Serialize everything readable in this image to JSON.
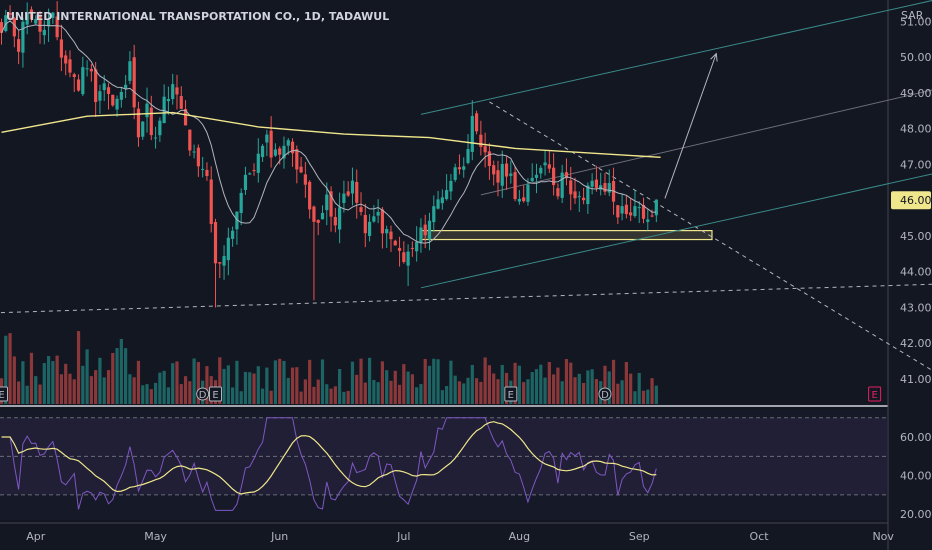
{
  "header": {
    "title": "UNITED INTERNATIONAL TRANSPORTATION CO., 1D, TADAWUL",
    "currency": "SAR"
  },
  "chart_data": {
    "type": "candlestick",
    "price_axis": {
      "ticks": [
        "51.00",
        "50.00",
        "49.00",
        "48.00",
        "47.00",
        "45.00",
        "44.00",
        "43.00",
        "42.00",
        "41.00"
      ],
      "tick_values": [
        51,
        50,
        49,
        48,
        47,
        45,
        44,
        43,
        42,
        41
      ],
      "last_price_label": "46.00",
      "last_price": 46.0,
      "range": [
        40.3,
        51.6
      ]
    },
    "rsi_axis": {
      "ticks": [
        "60.00",
        "40.00",
        "20.00"
      ],
      "tick_values": [
        60,
        40,
        20
      ],
      "upper_band": 70,
      "middle": 50,
      "lower_band": 30,
      "range": [
        17,
        74
      ]
    },
    "time_axis": {
      "labels": [
        "Apr",
        "May",
        "Jun",
        "Jul",
        "Aug",
        "Sep",
        "Oct",
        "Nov"
      ],
      "label_day_index": [
        8,
        36,
        65,
        94,
        121,
        149,
        177,
        206
      ]
    },
    "earnings_markers": [
      {
        "label": "E",
        "day": 0,
        "color": "#b2b5be"
      },
      {
        "label": "D",
        "day": 47,
        "color": "#b2b5be"
      },
      {
        "label": "E",
        "day": 50,
        "color": "#b2b5be"
      },
      {
        "label": "E",
        "day": 119,
        "color": "#b2b5be"
      },
      {
        "label": "D",
        "day": 141,
        "color": "#b2b5be"
      },
      {
        "label": "E",
        "day": 204,
        "color": "#e91e63"
      }
    ],
    "sma200": [
      [
        0,
        47.9
      ],
      [
        20,
        48.35
      ],
      [
        40,
        48.45
      ],
      [
        60,
        48.05
      ],
      [
        80,
        47.85
      ],
      [
        100,
        47.75
      ],
      [
        120,
        47.45
      ],
      [
        140,
        47.3
      ],
      [
        154,
        47.2
      ]
    ],
    "support_zone": [
      45.15,
      44.9
    ],
    "support_zone_range": [
      98,
      166
    ],
    "lines": [
      {
        "kind": "dashed",
        "color": "#b2b5be",
        "from": [
          -2,
          42.85
        ],
        "to": [
          218,
          43.65
        ]
      },
      {
        "kind": "dashed",
        "color": "#b2b5be",
        "from": [
          114,
          48.75
        ],
        "to": [
          218,
          41.2
        ]
      },
      {
        "kind": "solid",
        "color": "#3a8a8a",
        "from": [
          98,
          48.4
        ],
        "to": [
          218,
          51.6
        ]
      },
      {
        "kind": "solid",
        "color": "#6a6d78",
        "from": [
          112,
          46.15
        ],
        "to": [
          218,
          49.1
        ]
      },
      {
        "kind": "solid",
        "color": "#3a8a8a",
        "from": [
          98,
          43.55
        ],
        "to": [
          218,
          46.75
        ]
      },
      {
        "kind": "arrow",
        "color": "#b2b5be",
        "from": [
          155,
          46.05
        ],
        "to": [
          167,
          50.1
        ]
      }
    ],
    "colors": {
      "up": "#26a69a",
      "down": "#ef5350",
      "sma_fast": "#b2b5be",
      "sma_slow": "#f0e68c",
      "rsi": "#7e57c2",
      "rsi_ma": "#f0e68c",
      "zone": "#f0e68c"
    }
  }
}
